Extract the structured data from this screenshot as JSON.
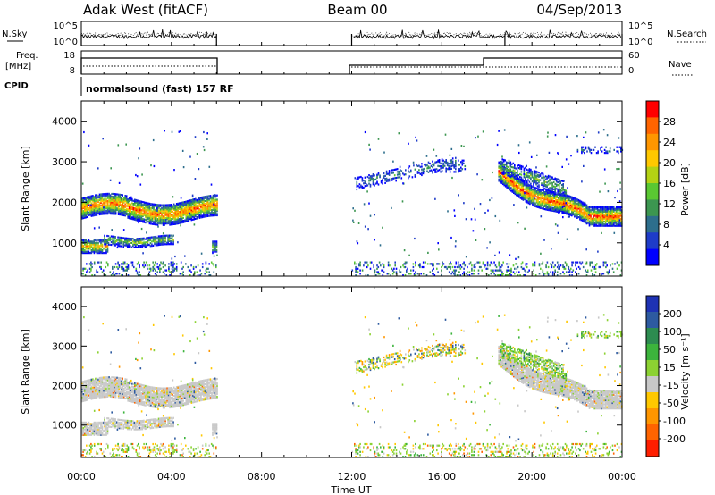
{
  "header": {
    "station": "Adak West (fitACF)",
    "beam": "Beam 00",
    "date": "04/Sep/2013"
  },
  "labels": {
    "nsky": "N.Sky",
    "nsearch": "N.Search",
    "freq_line1": "Freq.",
    "freq_line2": "[MHz]",
    "nave": "Nave",
    "cpid": "CPID",
    "cpid_text": "normalsound (fast) 157 RF"
  },
  "top_axes": {
    "nsky_ticks": [
      "10^5",
      "10^0"
    ],
    "nsearch_ticks": [
      "10^5",
      "10^0"
    ],
    "freq_ticks": [
      "18",
      "8"
    ],
    "nave_ticks": [
      "60",
      "0"
    ]
  },
  "chart_data": [
    {
      "type": "heatmap",
      "panel": "power",
      "ylabel": "Slant Range [km]",
      "xlabel": "",
      "x_ticks": [
        "00:00",
        "04:00",
        "08:00",
        "12:00",
        "16:00",
        "20:00",
        "00:00"
      ],
      "xlim_hours": [
        0,
        24
      ],
      "ylim_km": [
        180,
        4500
      ],
      "y_ticks": [
        1000,
        2000,
        3000,
        4000
      ],
      "colorbar": {
        "label": "Power [dB]",
        "ticks": [
          "4",
          "8",
          "12",
          "16",
          "20",
          "24",
          "28"
        ],
        "colors": [
          "#0000ff",
          "#1e3cc8",
          "#2d6e8c",
          "#3c9650",
          "#5ac832",
          "#b4d214",
          "#ffc800",
          "#ff9600",
          "#ff6400",
          "#ff0000"
        ]
      }
    },
    {
      "type": "heatmap",
      "panel": "velocity",
      "ylabel": "Slant Range [km]",
      "xlabel": "Time UT",
      "x_ticks": [
        "00:00",
        "04:00",
        "08:00",
        "12:00",
        "16:00",
        "20:00",
        "00:00"
      ],
      "xlim_hours": [
        0,
        24
      ],
      "ylim_km": [
        180,
        4500
      ],
      "y_ticks": [
        1000,
        2000,
        3000,
        4000
      ],
      "colorbar": {
        "label": "Velocity [m s⁻¹]",
        "ticks": [
          "200",
          "100",
          "50",
          "15",
          "-15",
          "-50",
          "-100",
          "-200"
        ],
        "colors": [
          "#1e32b4",
          "#2d5aa0",
          "#2d8c50",
          "#3cb43c",
          "#8cd232",
          "#c8c8c8",
          "#ffc800",
          "#ff9600",
          "#ff6400",
          "#ff1e00"
        ]
      }
    }
  ]
}
